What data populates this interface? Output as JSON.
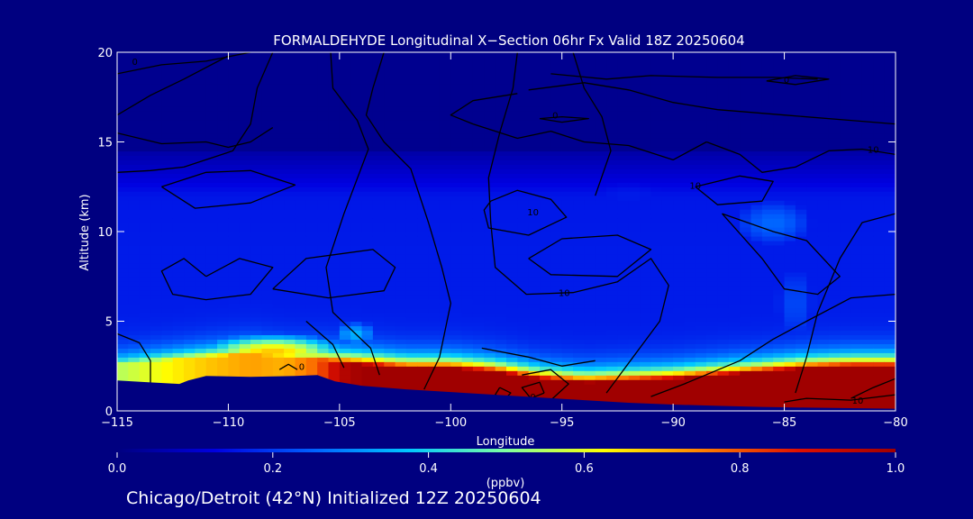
{
  "chart_data": {
    "type": "heatmap",
    "title": "FORMALDEHYDE Longitudinal X−Section 06hr  Fx Valid 18Z 20250604",
    "xlabel": "Longitude",
    "ylabel": "Altitude (km)",
    "xlim": [
      -115,
      -80
    ],
    "ylim": [
      0,
      20
    ],
    "x_ticks": [
      -115,
      -110,
      -105,
      -100,
      -95,
      -90,
      -85,
      -80
    ],
    "x_tick_labels": [
      "−115",
      "−110",
      "−105",
      "−100",
      "−95",
      "−90",
      "−85",
      "−80"
    ],
    "y_ticks": [
      0,
      5,
      10,
      15,
      20
    ],
    "y_tick_labels": [
      "0",
      "5",
      "10",
      "15",
      "20"
    ],
    "colorbar": {
      "label": "(ppbv)",
      "range": [
        0.0,
        1.0
      ],
      "ticks": [
        0.0,
        0.2,
        0.4,
        0.6,
        0.8,
        1.0
      ],
      "tick_labels": [
        "0.0",
        "0.2",
        "0.4",
        "0.6",
        "0.8",
        "1.0"
      ],
      "colors": [
        "#000080",
        "#0000e0",
        "#0060ff",
        "#00c8ff",
        "#80ffa0",
        "#ffff00",
        "#ff8000",
        "#e01000",
        "#a00000"
      ]
    },
    "terrain": {
      "lon": [
        -115,
        -113.6,
        -112.2,
        -111.8,
        -111,
        -109,
        -107,
        -106,
        -105.2,
        -104,
        -102,
        -100,
        -98,
        -96,
        -94,
        -92,
        -90,
        -88,
        -86,
        -84,
        -82,
        -80
      ],
      "alt": [
        1.7,
        1.6,
        1.5,
        1.7,
        1.95,
        1.9,
        1.95,
        2.0,
        1.65,
        1.4,
        1.2,
        1.05,
        0.9,
        0.75,
        0.6,
        0.45,
        0.35,
        0.28,
        0.22,
        0.18,
        0.15,
        0.12
      ]
    },
    "pbl_top": {
      "lon": [
        -115,
        -113,
        -111,
        -109,
        -107.5,
        -106,
        -105,
        -104,
        -102,
        -100,
        -98,
        -96,
        -95,
        -94,
        -92,
        -90,
        -88,
        -86,
        -84,
        -82,
        -80
      ],
      "alt": [
        2.6,
        2.8,
        3.0,
        3.2,
        3.0,
        2.9,
        2.7,
        2.6,
        2.4,
        2.4,
        2.2,
        1.8,
        1.7,
        1.6,
        1.7,
        1.8,
        2.0,
        2.2,
        2.4,
        2.5,
        2.5
      ],
      "value": [
        0.55,
        0.62,
        0.68,
        0.72,
        0.7,
        0.78,
        0.95,
        1.0,
        1.0,
        1.0,
        1.0,
        1.0,
        1.0,
        1.0,
        1.0,
        1.0,
        1.0,
        1.0,
        1.0,
        1.0,
        1.0
      ]
    },
    "blobs": [
      {
        "lon": -108,
        "alt": 3.3,
        "rlon": 3.5,
        "ralt": 1.0,
        "value": 0.68
      },
      {
        "lon": -104.3,
        "alt": 4.3,
        "rlon": 1.2,
        "ralt": 0.9,
        "value": 0.35
      },
      {
        "lon": -85.5,
        "alt": 10.5,
        "rlon": 2.5,
        "ralt": 1.8,
        "value": 0.26
      },
      {
        "lon": -84.5,
        "alt": 6.0,
        "rlon": 1.5,
        "ralt": 3.5,
        "value": 0.22
      },
      {
        "lon": -92,
        "alt": 12.0,
        "rlon": 4.5,
        "ralt": 1.5,
        "value": 0.16
      },
      {
        "lon": -97,
        "alt": 11.0,
        "rlon": 3.0,
        "ralt": 1.5,
        "value": 0.14
      }
    ],
    "contour_labels": [
      {
        "text": "10",
        "lon": -94.9,
        "alt": 6.6
      },
      {
        "text": "10",
        "lon": -81,
        "alt": 14.6
      },
      {
        "text": "10",
        "lon": -81.7,
        "alt": 0.6
      },
      {
        "text": "0",
        "lon": -84.9,
        "alt": 18.5
      },
      {
        "text": "0",
        "lon": -95.3,
        "alt": 16.5
      },
      {
        "text": "0",
        "lon": -114.2,
        "alt": 19.5
      },
      {
        "text": "0",
        "lon": -106.7,
        "alt": 2.5
      },
      {
        "text": "0",
        "lon": -97.6,
        "alt": 0.7
      },
      {
        "text": "0",
        "lon": -96.3,
        "alt": 0.8
      },
      {
        "text": "10",
        "lon": -89.0,
        "alt": 12.6
      },
      {
        "text": "10",
        "lon": -96.3,
        "alt": 11.1
      }
    ]
  },
  "caption": "Chicago/Detroit (42°N) Initialized 12Z 20250604"
}
